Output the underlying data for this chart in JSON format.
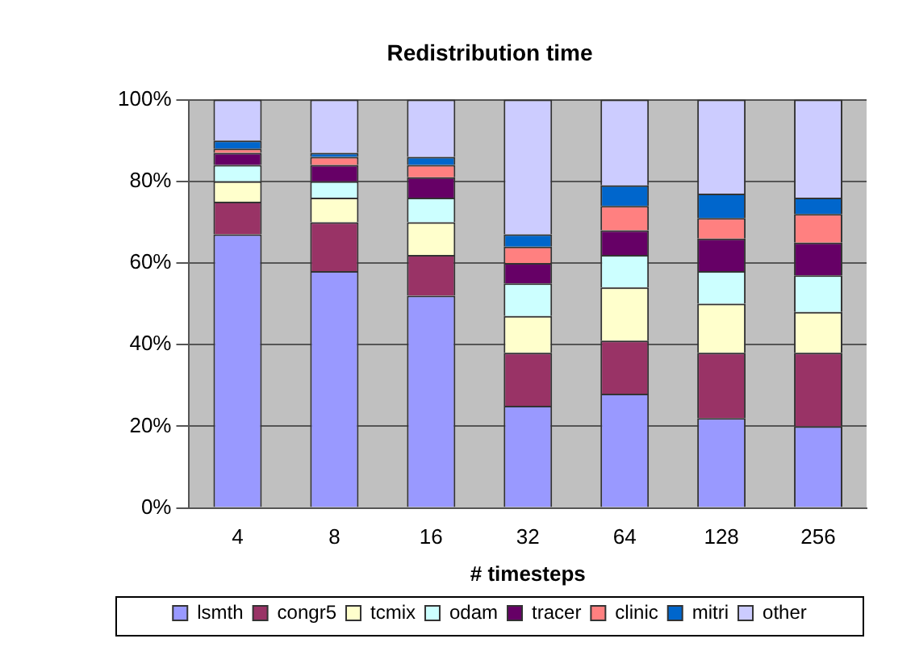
{
  "chart_data": {
    "type": "bar",
    "title": "Redistribution time",
    "xlabel": "# timesteps",
    "categories": [
      "4",
      "8",
      "16",
      "32",
      "64",
      "128",
      "256"
    ],
    "stacked": true,
    "series": [
      {
        "name": "lsmth",
        "color": "#9999ff",
        "values": [
          67,
          58,
          52,
          25,
          28,
          22,
          20
        ]
      },
      {
        "name": "congr5",
        "color": "#993366",
        "values": [
          8,
          12,
          10,
          13,
          13,
          16,
          18
        ]
      },
      {
        "name": "tcmix",
        "color": "#ffffcc",
        "values": [
          5,
          6,
          8,
          9,
          13,
          12,
          10
        ]
      },
      {
        "name": "odam",
        "color": "#ccffff",
        "values": [
          4,
          4,
          6,
          8,
          8,
          8,
          9
        ]
      },
      {
        "name": "tracer",
        "color": "#660066",
        "values": [
          3,
          4,
          5,
          5,
          6,
          8,
          8
        ]
      },
      {
        "name": "clinic",
        "color": "#ff8080",
        "values": [
          1,
          2,
          3,
          4,
          6,
          5,
          7
        ]
      },
      {
        "name": "mitri",
        "color": "#0066cc",
        "values": [
          2,
          1,
          2,
          3,
          5,
          6,
          4
        ]
      },
      {
        "name": "other",
        "color": "#ccccff",
        "values": [
          10,
          13,
          14,
          33,
          21,
          23,
          24
        ]
      }
    ],
    "ylim": [
      0,
      100
    ],
    "yticks": [
      {
        "value": 0,
        "label": "0%"
      },
      {
        "value": 20,
        "label": "20%"
      },
      {
        "value": 40,
        "label": "40%"
      },
      {
        "value": 60,
        "label": "60%"
      },
      {
        "value": 80,
        "label": "80%"
      },
      {
        "value": 100,
        "label": "100%"
      }
    ],
    "grid": "y",
    "legend": "bottom"
  }
}
